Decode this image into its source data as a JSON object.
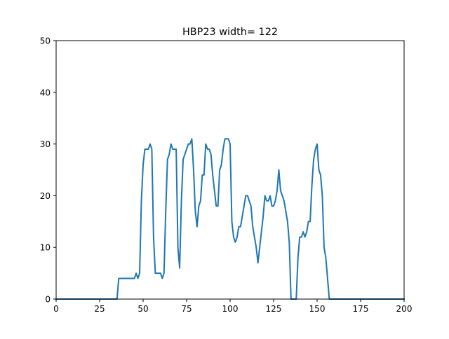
{
  "chart_data": {
    "type": "line",
    "title": "HBP23 width= 122",
    "xlabel": "",
    "ylabel": "",
    "xlim": [
      0,
      200
    ],
    "ylim": [
      0,
      50
    ],
    "xticks": [
      0,
      25,
      50,
      75,
      100,
      125,
      150,
      175,
      200
    ],
    "yticks": [
      0,
      10,
      20,
      30,
      40,
      50
    ],
    "xtick_labels": [
      "0",
      "25",
      "50",
      "75",
      "100",
      "125",
      "150",
      "175",
      "200"
    ],
    "ytick_labels": [
      "0",
      "10",
      "20",
      "30",
      "40",
      "50"
    ],
    "grid": false,
    "legend": "none",
    "series": [
      {
        "color": "#1f77b4",
        "x": [
          0,
          35,
          36,
          37,
          38,
          39,
          40,
          41,
          42,
          43,
          44,
          45,
          46,
          47,
          48,
          49,
          50,
          51,
          52,
          53,
          54,
          55,
          56,
          57,
          58,
          59,
          60,
          61,
          62,
          63,
          64,
          65,
          66,
          67,
          68,
          69,
          70,
          71,
          72,
          73,
          74,
          75,
          76,
          77,
          78,
          79,
          80,
          81,
          82,
          83,
          84,
          85,
          86,
          87,
          88,
          89,
          90,
          91,
          92,
          93,
          94,
          95,
          96,
          97,
          98,
          99,
          100,
          101,
          102,
          103,
          104,
          105,
          106,
          107,
          108,
          109,
          110,
          111,
          112,
          113,
          114,
          115,
          116,
          117,
          118,
          119,
          120,
          121,
          122,
          123,
          124,
          125,
          126,
          127,
          128,
          129,
          130,
          131,
          132,
          133,
          134,
          135,
          136,
          137,
          138,
          139,
          140,
          141,
          142,
          143,
          144,
          145,
          146,
          147,
          148,
          149,
          150,
          151,
          152,
          153,
          154,
          155,
          156,
          157,
          158,
          200
        ],
        "y": [
          0,
          0,
          4,
          4,
          4,
          4,
          4,
          4,
          4,
          4,
          4,
          4,
          5,
          4,
          5,
          19,
          26,
          29,
          29,
          29,
          30,
          29,
          12,
          5,
          5,
          5,
          5,
          4,
          5,
          17,
          27,
          28,
          30,
          29,
          29,
          29,
          10,
          6,
          19,
          27,
          28,
          29,
          30,
          30,
          31,
          25,
          17,
          14,
          18,
          19,
          24,
          24,
          30,
          29,
          29,
          28,
          24,
          21,
          18,
          18,
          25,
          26,
          29,
          31,
          31,
          31,
          30,
          15,
          12,
          11,
          12,
          14,
          14,
          16,
          18,
          20,
          20,
          19,
          18,
          14,
          12,
          10,
          7,
          10,
          13,
          16,
          20,
          19,
          19,
          20,
          18,
          18,
          19,
          21,
          25,
          21,
          20,
          19,
          17,
          15,
          11,
          0,
          0,
          0,
          0,
          8,
          12,
          12,
          13,
          12,
          13,
          15,
          15,
          22,
          27,
          29,
          30,
          25,
          24,
          20,
          10,
          8,
          4,
          0,
          0,
          0
        ]
      }
    ]
  }
}
